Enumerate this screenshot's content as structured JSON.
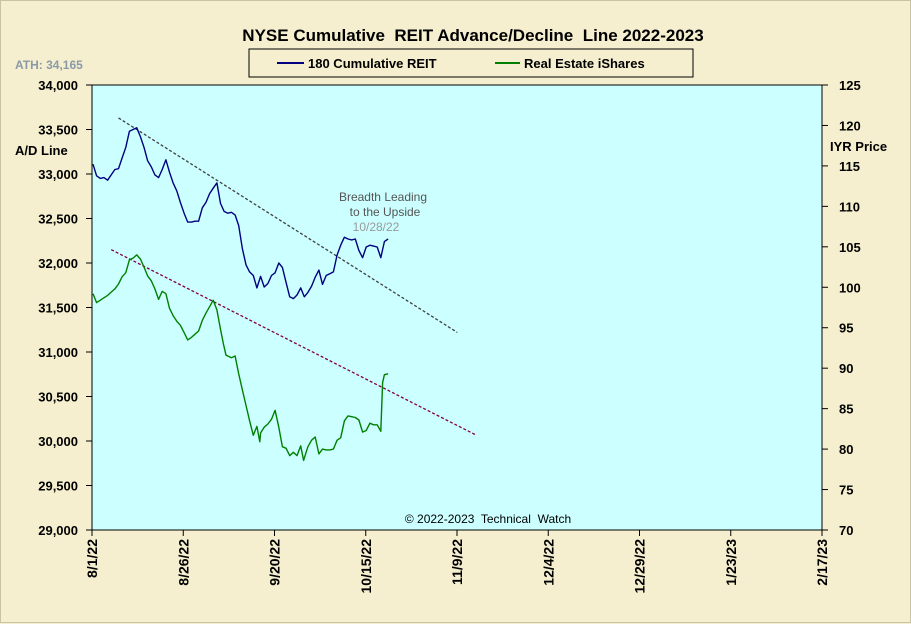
{
  "chart_data": {
    "type": "line",
    "title": "NYSE Cumulative  REIT Advance/Decline  Line 2022-2023",
    "ath_label": "ATH: 34,165",
    "left_axis": {
      "label": "A/D Line",
      "min": 29000,
      "max": 34000,
      "ticks": [
        29000,
        29500,
        30000,
        30500,
        31000,
        31500,
        32000,
        32500,
        33000,
        33500,
        34000
      ],
      "tick_labels": [
        "29,000",
        "29,500",
        "30,000",
        "30,500",
        "31,000",
        "31,500",
        "32,000",
        "32,500",
        "33,000",
        "33,500",
        "34,000"
      ]
    },
    "right_axis": {
      "label": "IYR Price",
      "min": 70,
      "max": 125,
      "ticks": [
        70,
        75,
        80,
        85,
        90,
        95,
        100,
        105,
        110,
        115,
        120,
        125
      ],
      "tick_labels": [
        "70",
        "75",
        "80",
        "85",
        "90",
        "95",
        "100",
        "105",
        "110",
        "115",
        "120",
        "125"
      ]
    },
    "x_axis": {
      "tick_labels": [
        "8/1/22",
        "8/26/22",
        "9/20/22",
        "10/15/22",
        "11/9/22",
        "12/4/22",
        "12/29/22",
        "1/23/23",
        "2/17/23"
      ]
    },
    "legend": {
      "placement": "top-center",
      "entries": [
        {
          "name": "180 Cumulative REIT",
          "color": "#000080"
        },
        {
          "name": "Real Estate iShares",
          "color": "#008000"
        }
      ]
    },
    "series": [
      {
        "name": "180 Cumulative REIT",
        "axis": "left",
        "color": "#000080",
        "points": [
          [
            0,
            33110
          ],
          [
            1,
            32980
          ],
          [
            2,
            32950
          ],
          [
            3,
            32960
          ],
          [
            4,
            32930
          ],
          [
            5,
            32990
          ],
          [
            6,
            33050
          ],
          [
            7,
            33060
          ],
          [
            8,
            33180
          ],
          [
            9,
            33300
          ],
          [
            10,
            33480
          ],
          [
            11,
            33500
          ],
          [
            12,
            33520
          ],
          [
            13,
            33420
          ],
          [
            14,
            33300
          ],
          [
            15,
            33150
          ],
          [
            16,
            33080
          ],
          [
            17,
            32990
          ],
          [
            18,
            32960
          ],
          [
            19,
            33050
          ],
          [
            20,
            33160
          ],
          [
            21,
            33020
          ],
          [
            22,
            32900
          ],
          [
            23,
            32810
          ],
          [
            24,
            32680
          ],
          [
            25,
            32560
          ],
          [
            26,
            32460
          ],
          [
            27,
            32460
          ],
          [
            28,
            32470
          ],
          [
            29,
            32470
          ],
          [
            30,
            32620
          ],
          [
            31,
            32680
          ],
          [
            32,
            32780
          ],
          [
            33,
            32840
          ],
          [
            34,
            32900
          ],
          [
            35,
            32670
          ],
          [
            36,
            32580
          ],
          [
            37,
            32560
          ],
          [
            38,
            32570
          ],
          [
            39,
            32540
          ],
          [
            40,
            32420
          ],
          [
            41,
            32160
          ],
          [
            42,
            31980
          ],
          [
            43,
            31900
          ],
          [
            44,
            31860
          ],
          [
            45,
            31720
          ],
          [
            46,
            31850
          ],
          [
            47,
            31730
          ],
          [
            48,
            31770
          ],
          [
            49,
            31860
          ],
          [
            50,
            31890
          ],
          [
            51,
            32000
          ],
          [
            52,
            31950
          ],
          [
            53,
            31780
          ],
          [
            54,
            31620
          ],
          [
            55,
            31600
          ],
          [
            56,
            31640
          ],
          [
            57,
            31720
          ],
          [
            58,
            31620
          ],
          [
            59,
            31670
          ],
          [
            60,
            31740
          ],
          [
            61,
            31840
          ],
          [
            62,
            31920
          ],
          [
            63,
            31760
          ],
          [
            64,
            31860
          ],
          [
            65,
            31880
          ],
          [
            66,
            31900
          ],
          [
            67,
            32090
          ],
          [
            68,
            32200
          ],
          [
            69,
            32290
          ],
          [
            70,
            32270
          ],
          [
            71,
            32260
          ],
          [
            72,
            32270
          ],
          [
            73,
            32140
          ],
          [
            74,
            32060
          ],
          [
            75,
            32180
          ],
          [
            76,
            32200
          ],
          [
            77,
            32190
          ],
          [
            78,
            32180
          ],
          [
            79,
            32060
          ],
          [
            80,
            32240
          ],
          [
            81,
            32270
          ]
        ]
      },
      {
        "name": "Real Estate iShares",
        "axis": "right",
        "color": "#008000",
        "points": [
          [
            0,
            99.2
          ],
          [
            1,
            98.1
          ],
          [
            2,
            98.4
          ],
          [
            3,
            98.7
          ],
          [
            4,
            99.0
          ],
          [
            5,
            99.4
          ],
          [
            6,
            99.8
          ],
          [
            7,
            100.4
          ],
          [
            8,
            101.3
          ],
          [
            9,
            101.8
          ],
          [
            10,
            103.4
          ],
          [
            11,
            103.6
          ],
          [
            12,
            104.0
          ],
          [
            13,
            103.5
          ],
          [
            14,
            102.5
          ],
          [
            15,
            101.4
          ],
          [
            16,
            100.8
          ],
          [
            17,
            99.8
          ],
          [
            18,
            98.5
          ],
          [
            19,
            99.5
          ],
          [
            20,
            99.2
          ],
          [
            21,
            97.4
          ],
          [
            22,
            96.5
          ],
          [
            23,
            95.8
          ],
          [
            24,
            95.3
          ],
          [
            25,
            94.4
          ],
          [
            26,
            93.5
          ],
          [
            27,
            93.8
          ],
          [
            28,
            94.2
          ],
          [
            29,
            94.6
          ],
          [
            30,
            95.9
          ],
          [
            31,
            96.8
          ],
          [
            32,
            97.6
          ],
          [
            33,
            98.4
          ],
          [
            34,
            97.2
          ],
          [
            35,
            94.8
          ],
          [
            35.8,
            93.0
          ],
          [
            36.5,
            91.6
          ],
          [
            37,
            91.5
          ],
          [
            38,
            91.3
          ],
          [
            39,
            91.5
          ],
          [
            40,
            89.3
          ],
          [
            41,
            87.3
          ],
          [
            42,
            85.4
          ],
          [
            43,
            83.5
          ],
          [
            44,
            81.7
          ],
          [
            45,
            82.8
          ],
          [
            45.8,
            80.9
          ],
          [
            46,
            82.0
          ],
          [
            47,
            82.7
          ],
          [
            48,
            83.1
          ],
          [
            49,
            83.7
          ],
          [
            50,
            84.8
          ],
          [
            51,
            82.7
          ],
          [
            52,
            80.3
          ],
          [
            53,
            80.1
          ],
          [
            54,
            79.2
          ],
          [
            55,
            79.6
          ],
          [
            56,
            79.2
          ],
          [
            57,
            80.4
          ],
          [
            57.8,
            78.6
          ],
          [
            58.5,
            79.6
          ],
          [
            59,
            80.3
          ],
          [
            60,
            81.1
          ],
          [
            61,
            81.5
          ],
          [
            62,
            79.4
          ],
          [
            63,
            80.0
          ],
          [
            64,
            79.9
          ],
          [
            65,
            79.9
          ],
          [
            66,
            80.0
          ],
          [
            67,
            81.1
          ],
          [
            68,
            81.4
          ],
          [
            69,
            83.5
          ],
          [
            70,
            84.1
          ],
          [
            71,
            84.0
          ],
          [
            72,
            83.9
          ],
          [
            73,
            83.6
          ],
          [
            74,
            82.1
          ],
          [
            75,
            82.3
          ],
          [
            76,
            83.2
          ],
          [
            77,
            83.0
          ],
          [
            78,
            83.0
          ],
          [
            79,
            82.2
          ],
          [
            79.5,
            88.2
          ],
          [
            80,
            89.2
          ],
          [
            81,
            89.3
          ]
        ]
      }
    ],
    "trendlines": [
      {
        "name": "upper-dashed-trendline",
        "axis": "left",
        "color": "#404040",
        "from": [
          7,
          33630
        ],
        "to": [
          100,
          31220
        ]
      },
      {
        "name": "lower-dashed-trendline",
        "axis": "left",
        "color": "#800040",
        "from": [
          5,
          32150
        ],
        "to": [
          105,
          30070
        ]
      }
    ],
    "annotation": {
      "lines": [
        "Breadth Leading",
        "to the Upside"
      ],
      "date": "10/28/22"
    },
    "copyright": "© 2022-2023  Technical  Watch"
  }
}
